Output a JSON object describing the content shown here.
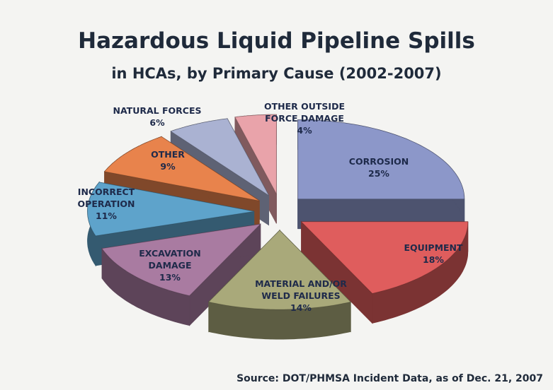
{
  "chart_data": {
    "type": "pie",
    "title": "Hazardous Liquid Pipeline Spills",
    "subtitle": "in HCAs, by Primary Cause (2002-2007)",
    "source": "Source: DOT/PHMSA Incident Data, as of Dec. 21, 2007",
    "categories": [
      "CORROSION",
      "EQUIPMENT",
      "MATERIAL AND/OR WELD FAILURES",
      "EXCAVATION DAMAGE",
      "INCORRECT OPERATION",
      "OTHER",
      "NATURAL FORCES",
      "OTHER OUTSIDE FORCE DAMAGE"
    ],
    "values": [
      25,
      18,
      14,
      13,
      11,
      9,
      6,
      4
    ],
    "value_labels": [
      "25%",
      "18%",
      "14%",
      "13%",
      "11%",
      "9%",
      "6%",
      "4%"
    ],
    "colors": [
      "#8c97c9",
      "#df5d5d",
      "#a9a97a",
      "#a97ba1",
      "#5ea3cb",
      "#e8834c",
      "#aab2d2",
      "#e9a3aa"
    ]
  }
}
